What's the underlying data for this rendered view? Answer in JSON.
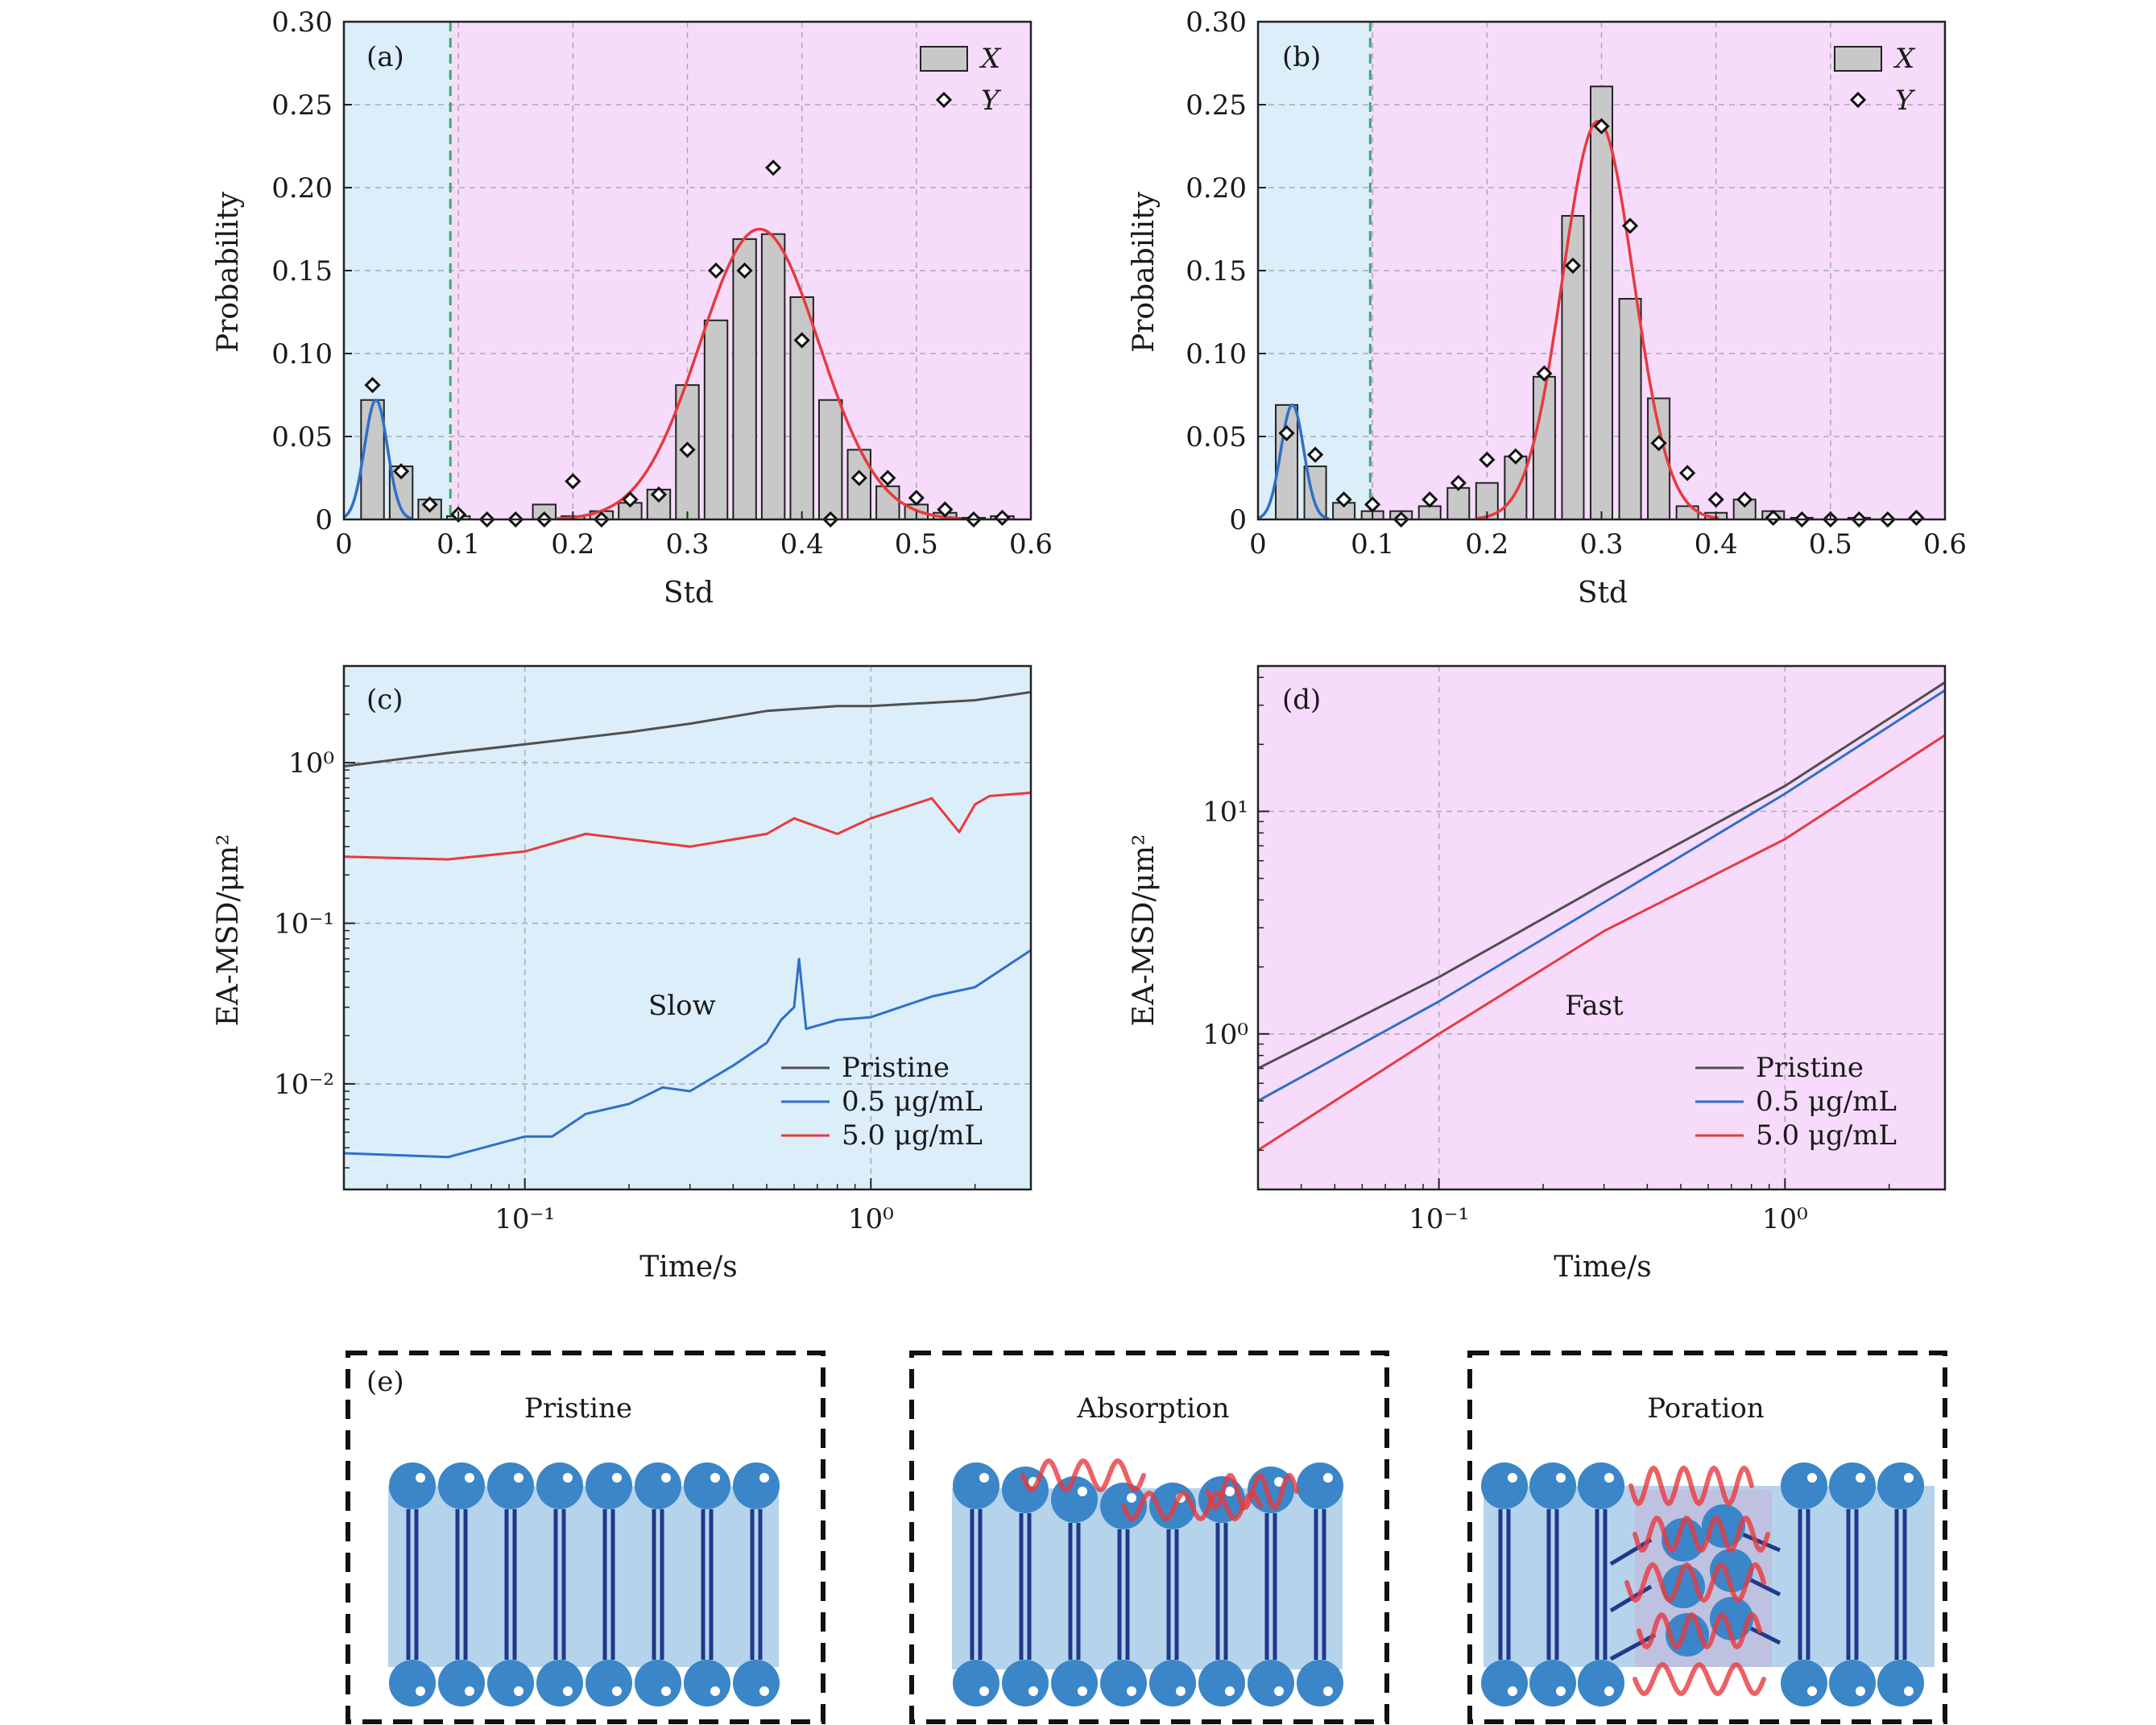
{
  "colors": {
    "slow_bg": "#dbeefa",
    "fast_bg": "#f6dcfa",
    "bar_fill": "#c8c8c8",
    "fit_x": "#e8393f",
    "fit_slow": "#2f6fc9",
    "pristine": "#505050",
    "low_conc": "#2f6fc9",
    "high_conc": "#e8393f",
    "threshold": "#3aaa6e",
    "lipid_head": "#3a86c8",
    "lipid_tail": "#1e3a8a",
    "membrane": "#b6d3ec",
    "peptide": "#e8393f"
  },
  "chart_data": [
    {
      "panel": "(a)",
      "type": "bar",
      "xlabel": "Std",
      "ylabel": "Probability",
      "xlim": [
        0,
        0.6
      ],
      "ylim": [
        0,
        0.3
      ],
      "xticks": [
        "0",
        "0.1",
        "0.2",
        "0.3",
        "0.4",
        "0.5",
        "0.6"
      ],
      "yticks": [
        "0",
        "0.05",
        "0.10",
        "0.15",
        "0.20",
        "0.25",
        "0.30"
      ],
      "threshold": 0.093,
      "legend": [
        "X",
        "Y"
      ],
      "legend_position": "top-right",
      "grid": true,
      "bar_width": 0.02,
      "x": [
        0.025,
        0.05,
        0.075,
        0.1,
        0.125,
        0.15,
        0.175,
        0.2,
        0.225,
        0.25,
        0.275,
        0.3,
        0.325,
        0.35,
        0.375,
        0.4,
        0.425,
        0.45,
        0.475,
        0.5,
        0.525,
        0.55,
        0.575
      ],
      "X": [
        0.072,
        0.032,
        0.012,
        0.002,
        0,
        0,
        0.009,
        0.002,
        0.005,
        0.01,
        0.018,
        0.081,
        0.12,
        0.169,
        0.172,
        0.134,
        0.072,
        0.042,
        0.02,
        0.009,
        0.004,
        0.001,
        0.002
      ],
      "Y": [
        0.081,
        0.029,
        0.009,
        0.003,
        0,
        0,
        0,
        0.023,
        0,
        0.012,
        0.015,
        0.042,
        0.15,
        0.15,
        0.212,
        0.108,
        0,
        0.025,
        0.025,
        0.013,
        0.006,
        0,
        0.001
      ],
      "fit_slow": {
        "mu": 0.028,
        "sigma": 0.01,
        "amp": 0.072
      },
      "fit_fast": {
        "mu": 0.363,
        "sigma": 0.052,
        "amp": 0.175
      }
    },
    {
      "panel": "(b)",
      "type": "bar",
      "xlabel": "Std",
      "ylabel": "Probability",
      "xlim": [
        0,
        0.6
      ],
      "ylim": [
        0,
        0.3
      ],
      "xticks": [
        "0",
        "0.1",
        "0.2",
        "0.3",
        "0.4",
        "0.5",
        "0.6"
      ],
      "yticks": [
        "0",
        "0.05",
        "0.10",
        "0.15",
        "0.20",
        "0.25",
        "0.30"
      ],
      "threshold": 0.098,
      "legend": [
        "X",
        "Y"
      ],
      "legend_position": "top-right",
      "grid": true,
      "bar_width": 0.019,
      "x": [
        0.025,
        0.05,
        0.075,
        0.1,
        0.125,
        0.15,
        0.175,
        0.2,
        0.225,
        0.25,
        0.275,
        0.3,
        0.325,
        0.35,
        0.375,
        0.4,
        0.425,
        0.45,
        0.475,
        0.5,
        0.525,
        0.55,
        0.575
      ],
      "X": [
        0.069,
        0.032,
        0.01,
        0.005,
        0.005,
        0.008,
        0.019,
        0.022,
        0.038,
        0.086,
        0.183,
        0.261,
        0.133,
        0.073,
        0.008,
        0.004,
        0.012,
        0.005,
        0.001,
        0,
        0.001,
        0,
        0
      ],
      "Y": [
        0.052,
        0.039,
        0.012,
        0.009,
        0,
        0.012,
        0.022,
        0.036,
        0.038,
        0.088,
        0.153,
        0.237,
        0.177,
        0.046,
        0.028,
        0.012,
        0.012,
        0.001,
        0,
        0,
        0,
        0,
        0.001
      ],
      "fit_slow": {
        "mu": 0.03,
        "sigma": 0.01,
        "amp": 0.069
      },
      "fit_fast": {
        "mu": 0.297,
        "sigma": 0.031,
        "amp": 0.24
      }
    },
    {
      "panel": "(c)",
      "type": "line",
      "xscale": "log",
      "yscale": "log",
      "xlabel": "Time/s",
      "ylabel": "EA-MSD/μm²",
      "xlim": [
        0.03,
        2.9
      ],
      "ylim": [
        0.0022,
        4
      ],
      "xticks": [
        "10⁻¹",
        "10⁰"
      ],
      "yticks": [
        "10⁻²",
        "10⁻¹",
        "10⁰"
      ],
      "annotation": "Slow",
      "legend_position": "bottom-right",
      "grid": true,
      "series": [
        {
          "name": "Pristine",
          "x": [
            0.03,
            0.06,
            0.1,
            0.2,
            0.3,
            0.5,
            0.8,
            1.0,
            2.0,
            2.9
          ],
          "y": [
            0.95,
            1.15,
            1.3,
            1.55,
            1.75,
            2.1,
            2.25,
            2.25,
            2.45,
            2.75
          ]
        },
        {
          "name": "0.5 μg/mL",
          "x": [
            0.03,
            0.06,
            0.1,
            0.12,
            0.15,
            0.2,
            0.25,
            0.3,
            0.4,
            0.5,
            0.55,
            0.6,
            0.62,
            0.65,
            0.8,
            1.0,
            1.5,
            2.0,
            2.9
          ],
          "y": [
            0.0037,
            0.0035,
            0.0047,
            0.0047,
            0.0065,
            0.0075,
            0.0095,
            0.009,
            0.013,
            0.018,
            0.025,
            0.03,
            0.06,
            0.022,
            0.025,
            0.026,
            0.035,
            0.04,
            0.068
          ]
        },
        {
          "name": "5.0 μg/mL",
          "x": [
            0.03,
            0.06,
            0.1,
            0.15,
            0.3,
            0.5,
            0.6,
            0.8,
            1.0,
            1.5,
            1.8,
            2.0,
            2.2,
            2.9
          ],
          "y": [
            0.26,
            0.25,
            0.28,
            0.36,
            0.3,
            0.36,
            0.45,
            0.36,
            0.45,
            0.6,
            0.37,
            0.55,
            0.62,
            0.65
          ]
        }
      ]
    },
    {
      "panel": "(d)",
      "type": "line",
      "xscale": "log",
      "yscale": "log",
      "xlabel": "Time/s",
      "ylabel": "EA-MSD/μm²",
      "xlim": [
        0.03,
        2.9
      ],
      "ylim": [
        0.2,
        45
      ],
      "xticks": [
        "10⁻¹",
        "10⁰"
      ],
      "yticks": [
        "10⁰",
        "10¹"
      ],
      "annotation": "Fast",
      "legend_position": "bottom-right",
      "grid": true,
      "series": [
        {
          "name": "Pristine",
          "x": [
            0.03,
            0.1,
            0.3,
            1.0,
            2.9
          ],
          "y": [
            0.7,
            1.8,
            4.7,
            13,
            38
          ]
        },
        {
          "name": "0.5 μg/mL",
          "x": [
            0.03,
            0.1,
            0.3,
            1.0,
            2.9
          ],
          "y": [
            0.5,
            1.4,
            3.9,
            12,
            35
          ]
        },
        {
          "name": "5.0 μg/mL",
          "x": [
            0.03,
            0.1,
            0.3,
            1.0,
            2.9
          ],
          "y": [
            0.3,
            1.0,
            2.9,
            7.5,
            22
          ]
        }
      ]
    }
  ],
  "panel_e": {
    "label": "(e)",
    "titles": [
      "Pristine",
      "Absorption",
      "Poration"
    ]
  }
}
